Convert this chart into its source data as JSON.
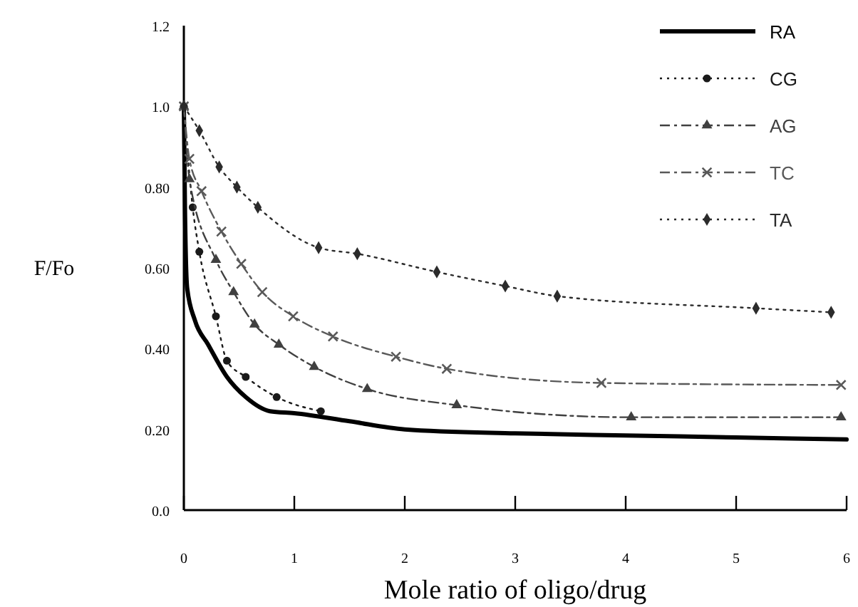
{
  "chart_data": {
    "type": "line",
    "xlabel": "Mole ratio of oligo/drug",
    "ylabel": "F/Fo",
    "xlim": [
      0,
      6
    ],
    "ylim": [
      0,
      1.2
    ],
    "xticks": [
      0,
      1,
      2,
      3,
      4,
      5,
      6
    ],
    "yticks": [
      {
        "value": 0,
        "label": "0.0"
      },
      {
        "value": 0.2,
        "label": "0.20"
      },
      {
        "value": 0.4,
        "label": "0.40"
      },
      {
        "value": 0.6,
        "label": "0.60"
      },
      {
        "value": 0.8,
        "label": "0.80"
      },
      {
        "value": 1,
        "label": "1.0"
      },
      {
        "value": 1.2,
        "label": "1.2"
      }
    ],
    "grid": false,
    "legend": "top right",
    "series": [
      {
        "name": "RA",
        "color": "#000000",
        "line_style": "solid",
        "marker": "none",
        "x": [
          0,
          0.01,
          0.03,
          0.1,
          0.22,
          0.39,
          0.56,
          0.78,
          1,
          1.5,
          2,
          3,
          4,
          5,
          6
        ],
        "values": [
          1.0,
          0.75,
          0.55,
          0.47,
          0.41,
          0.33,
          0.28,
          0.245,
          0.24,
          0.22,
          0.2,
          0.19,
          0.185,
          0.18,
          0.175
        ]
      },
      {
        "name": "CG",
        "color": "#1a1a1a",
        "line_style": "dotted",
        "marker": "circle",
        "x": [
          0,
          0.08,
          0.14,
          0.29,
          0.39,
          0.56,
          0.84,
          1.24
        ],
        "values": [
          1.0,
          0.75,
          0.64,
          0.48,
          0.37,
          0.33,
          0.28,
          0.245
        ]
      },
      {
        "name": "AG",
        "color": "#404040",
        "line_style": "dashed",
        "marker": "triangle",
        "x": [
          0,
          0.05,
          0.29,
          0.45,
          0.64,
          0.86,
          1.18,
          1.66,
          2.47,
          4.05,
          5.95
        ],
        "values": [
          1.0,
          0.82,
          0.62,
          0.54,
          0.46,
          0.41,
          0.355,
          0.3,
          0.26,
          0.23,
          0.23
        ]
      },
      {
        "name": "TC",
        "color": "#595959",
        "line_style": "dashed",
        "marker": "cross",
        "x": [
          0,
          0.05,
          0.16,
          0.34,
          0.52,
          0.71,
          0.99,
          1.35,
          1.92,
          2.38,
          3.78,
          5.95
        ],
        "values": [
          1.0,
          0.87,
          0.79,
          0.69,
          0.61,
          0.54,
          0.48,
          0.43,
          0.38,
          0.35,
          0.315,
          0.31
        ]
      },
      {
        "name": "TA",
        "color": "#2b2b2b",
        "line_style": "dotted",
        "marker": "diamond",
        "x": [
          0,
          0.14,
          0.32,
          0.48,
          0.67,
          1.22,
          1.57,
          2.29,
          2.91,
          3.38,
          5.18,
          5.86
        ],
        "values": [
          1.0,
          0.94,
          0.85,
          0.8,
          0.75,
          0.65,
          0.635,
          0.59,
          0.555,
          0.53,
          0.5,
          0.49
        ]
      }
    ]
  }
}
